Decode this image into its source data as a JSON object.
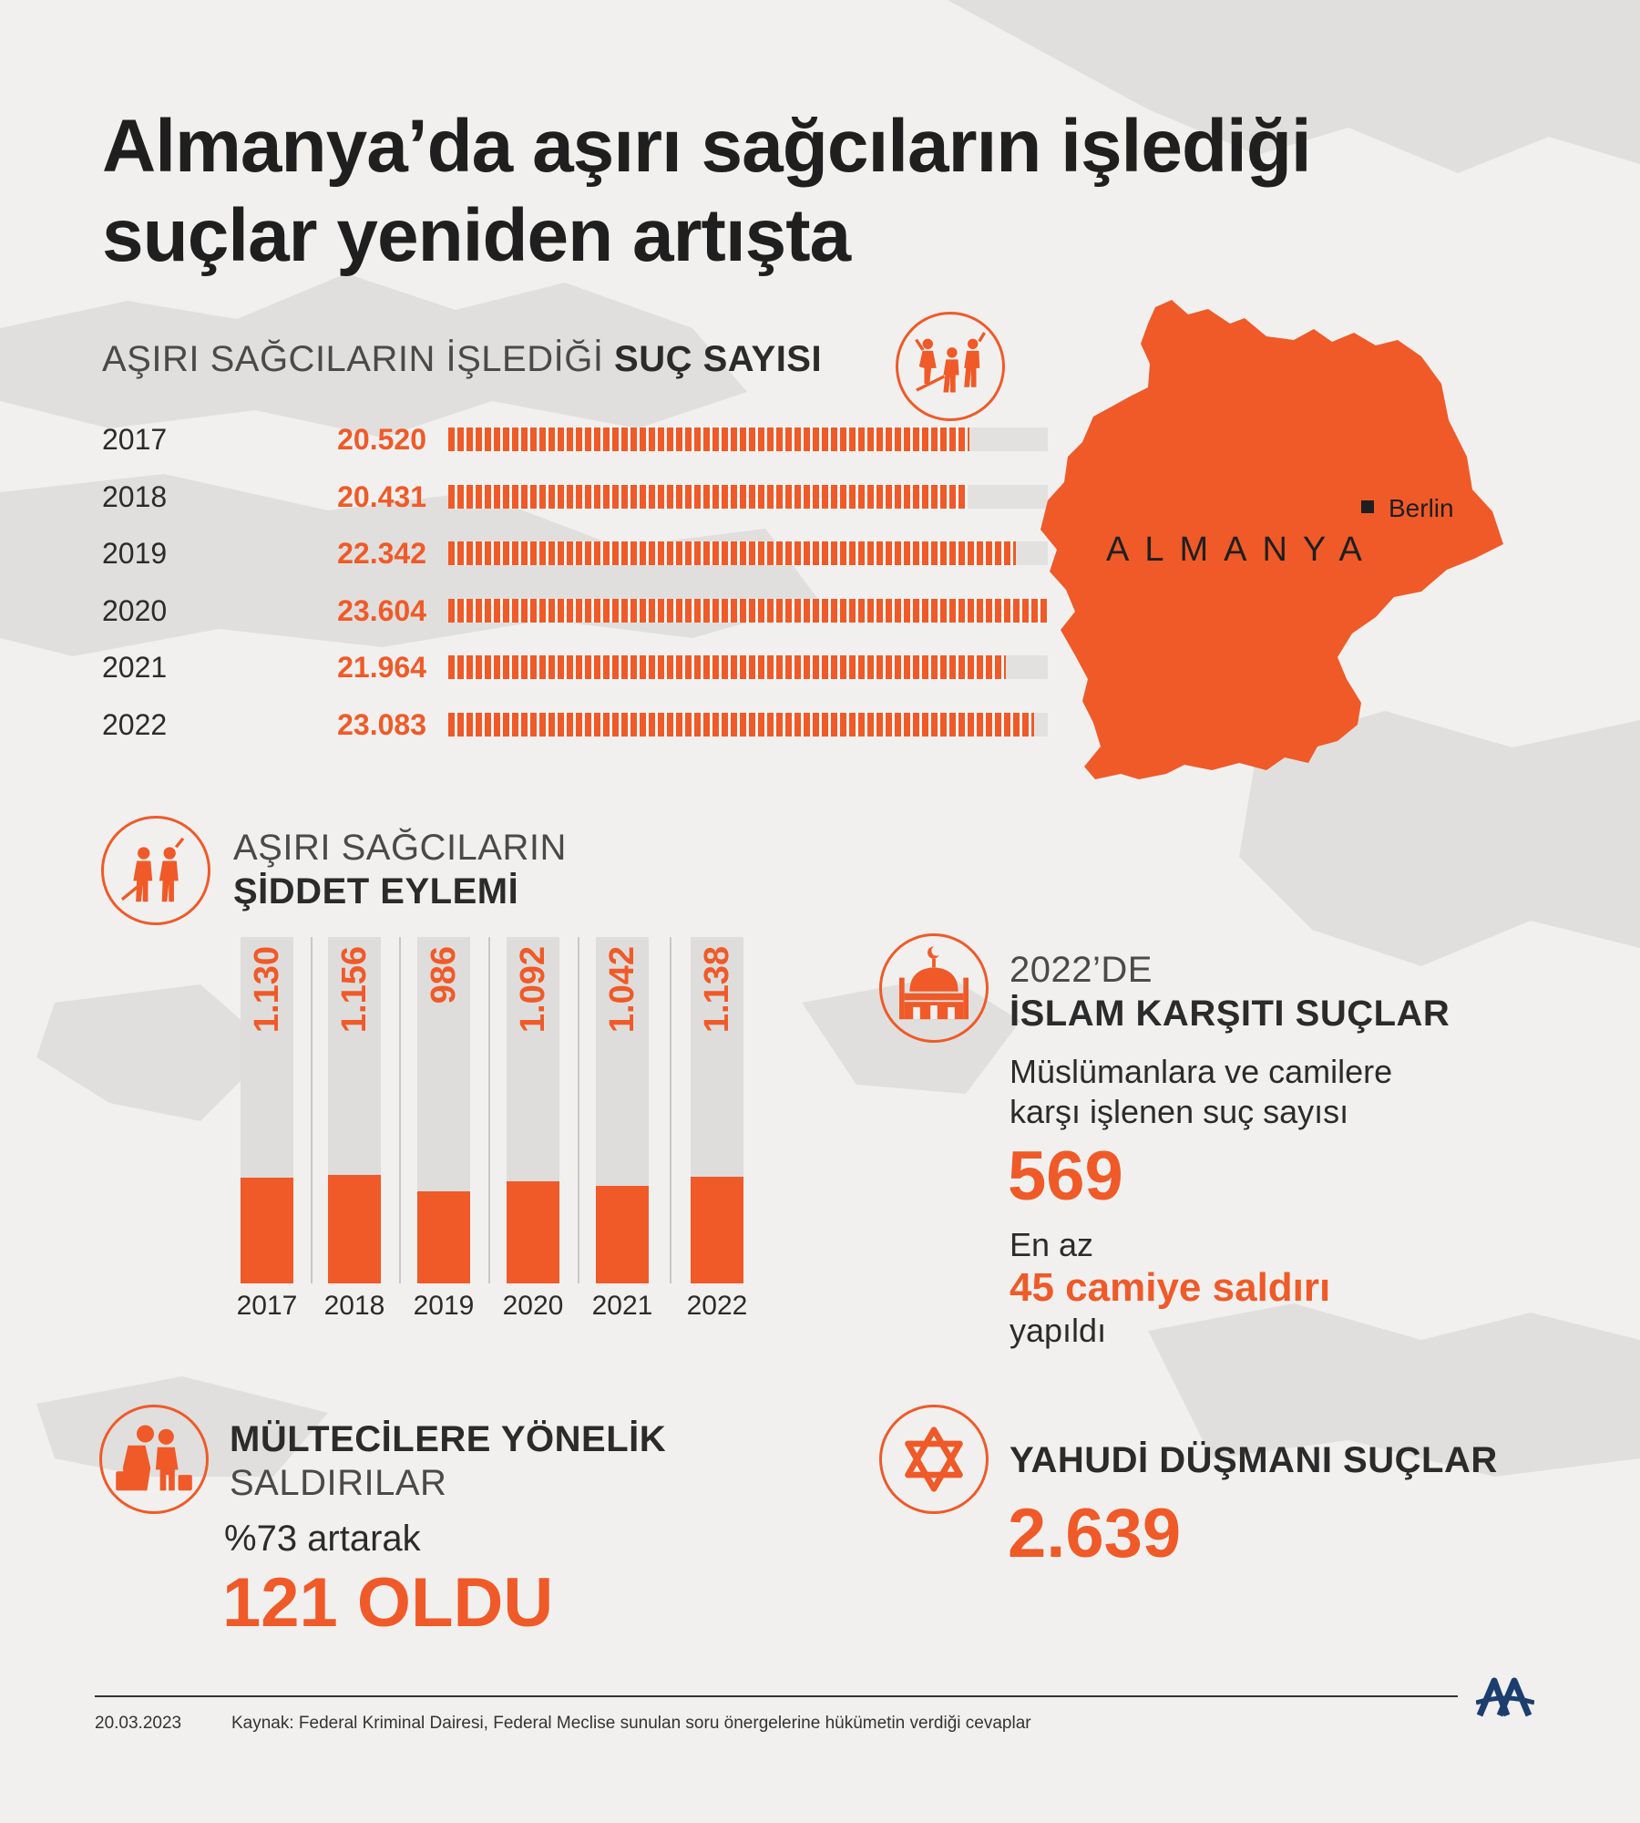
{
  "title": {
    "line1": "Almanya’da aşırı sağcıların işlediği",
    "line2": "suçlar yeniden artışta"
  },
  "crime_count": {
    "heading_regular": "AŞIRI SAĞCILARIN İŞLEDİĞİ ",
    "heading_bold": "SUÇ SAYISI",
    "icon": "extremists-attack-icon"
  },
  "map": {
    "country_label": "ALMANYA",
    "city_label": "Berlin",
    "color": "#ef5a28"
  },
  "violence": {
    "heading_line1": "AŞIRI SAĞCILARIN",
    "heading_line2": "ŞİDDET EYLEMİ",
    "icon": "violent-men-icon"
  },
  "islam": {
    "heading_line1": "2022’DE",
    "heading_line2": "İSLAM KARŞITI SUÇLAR",
    "desc_line1": "Müslümanlara ve camilere",
    "desc_line2": "karşı işlenen suç sayısı",
    "count": "569",
    "mosque_pre": "En az",
    "mosque_highlight": "45 camiye saldırı",
    "mosque_post": "yapıldı",
    "icon": "mosque-icon"
  },
  "refugees": {
    "heading_line1": "MÜLTECİLERE YÖNELİK",
    "heading_line2": "SALDIRILAR",
    "pre": "%73 artarak",
    "result": "121 OLDU",
    "icon": "refugee-family-icon"
  },
  "jews": {
    "heading": "YAHUDİ DÜŞMANI SUÇLAR",
    "count": "2.639",
    "icon": "star-of-david-icon"
  },
  "footer": {
    "date": "20.03.2023",
    "source": "Kaynak: Federal Kriminal Dairesi, Federal Meclise sunulan soru önergelerine hükümetin verdiği cevaplar",
    "logo": "AA"
  },
  "accent_color": "#ef5a28",
  "chart_data": [
    {
      "type": "bar",
      "orientation": "horizontal",
      "title": "AŞIRI SAĞCILARIN İŞLEDİĞİ SUÇ SAYISI",
      "categories": [
        "2017",
        "2018",
        "2019",
        "2020",
        "2021",
        "2022"
      ],
      "values": [
        20520,
        20431,
        22342,
        23604,
        21964,
        23083
      ],
      "value_labels": [
        "20.520",
        "20.431",
        "22.342",
        "23.604",
        "21.964",
        "23.083"
      ],
      "grid": false
    },
    {
      "type": "bar",
      "orientation": "vertical",
      "title": "AŞIRI SAĞCILARIN ŞİDDET EYLEMİ",
      "categories": [
        "2017",
        "2018",
        "2019",
        "2020",
        "2021",
        "2022"
      ],
      "values": [
        1130,
        1156,
        986,
        1092,
        1042,
        1138
      ],
      "value_labels": [
        "1.130",
        "1.156",
        "986",
        "1.092",
        "1.042",
        "1.138"
      ],
      "grid": false
    }
  ]
}
